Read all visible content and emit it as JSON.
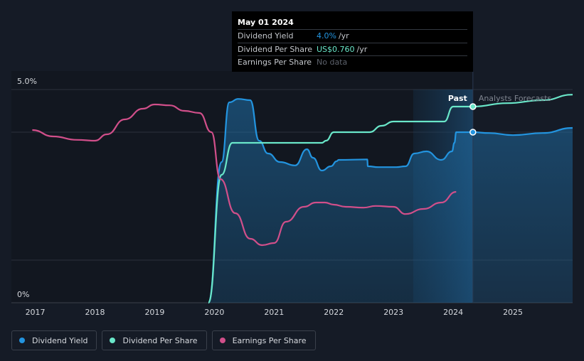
{
  "tooltip": {
    "date": "May 01 2024",
    "rows": [
      {
        "label": "Dividend Yield",
        "value": "4.0%",
        "unit": "/yr"
      },
      {
        "label": "Dividend Per Share",
        "value": "US$0.760",
        "unit": "/yr"
      },
      {
        "label": "Earnings Per Share",
        "value": "No data",
        "unit": ""
      }
    ]
  },
  "legend": [
    {
      "label": "Dividend Yield",
      "color": "#2394df"
    },
    {
      "label": "Dividend Per Share",
      "color": "#6ae7c9"
    },
    {
      "label": "Earnings Per Share",
      "color": "#d14f8a"
    }
  ],
  "chart_data": {
    "type": "line",
    "y_tick_labels": [
      "5.0%",
      "0%"
    ],
    "ylim": [
      0,
      5
    ],
    "xlim": [
      2016.6,
      2026.0
    ],
    "x_tick_labels": [
      "2017",
      "2018",
      "2019",
      "2020",
      "2021",
      "2022",
      "2023",
      "2024",
      "2025"
    ],
    "x_ticks": [
      2017,
      2018,
      2019,
      2020,
      2021,
      2022,
      2023,
      2024,
      2025
    ],
    "grid": true,
    "past_label": "Past",
    "forecast_label": "Analysts Forecasts",
    "past_end": 2024.33,
    "highlight_start": 2023.33,
    "highlight_x": 2024.33,
    "series": [
      {
        "name": "Dividend Yield",
        "color": "#2394df",
        "area": true,
        "x": [
          2019.9,
          2020.12,
          2020.25,
          2020.4,
          2020.6,
          2020.75,
          2020.9,
          2021.1,
          2021.35,
          2021.55,
          2021.65,
          2021.8,
          2021.95,
          2022.05,
          2022.08,
          2022.56,
          2022.57,
          2022.75,
          2023.05,
          2023.2,
          2023.35,
          2023.55,
          2023.8,
          2023.98,
          2024.02,
          2024.05,
          2024.33,
          2024.6,
          2025.0,
          2025.5,
          2026.0
        ],
        "y": [
          0.0,
          3.3,
          4.7,
          4.78,
          4.75,
          3.8,
          3.5,
          3.3,
          3.22,
          3.6,
          3.4,
          3.1,
          3.2,
          3.32,
          3.35,
          3.36,
          3.2,
          3.18,
          3.18,
          3.2,
          3.5,
          3.55,
          3.35,
          3.55,
          3.75,
          4.0,
          4.0,
          3.98,
          3.93,
          3.98,
          4.1
        ]
      },
      {
        "name": "Dividend Per Share",
        "color": "#6ae7c9",
        "area": false,
        "x": [
          2019.9,
          2020.12,
          2020.3,
          2020.5,
          2021.0,
          2021.5,
          2021.8,
          2021.87,
          2022.0,
          2022.3,
          2022.6,
          2022.8,
          2023.0,
          2023.3,
          2023.5,
          2023.85,
          2024.0,
          2024.33,
          2024.9,
          2025.5,
          2026.0
        ],
        "y": [
          0.0,
          3.0,
          3.75,
          3.75,
          3.75,
          3.75,
          3.75,
          3.8,
          4.0,
          4.0,
          4.0,
          4.15,
          4.25,
          4.25,
          4.25,
          4.25,
          4.6,
          4.6,
          4.68,
          4.75,
          4.88
        ]
      },
      {
        "name": "Earnings Per Share",
        "color": "#d14f8a",
        "area": false,
        "x": [
          2016.95,
          2017.3,
          2017.7,
          2018.0,
          2018.2,
          2018.5,
          2018.8,
          2019.0,
          2019.25,
          2019.5,
          2019.75,
          2019.95,
          2020.1,
          2020.35,
          2020.6,
          2020.8,
          2021.0,
          2021.2,
          2021.5,
          2021.7,
          2021.85,
          2022.0,
          2022.2,
          2022.5,
          2022.7,
          2023.0,
          2023.2,
          2023.5,
          2023.8,
          2024.05
        ],
        "y": [
          4.05,
          3.9,
          3.82,
          3.8,
          3.95,
          4.3,
          4.55,
          4.65,
          4.63,
          4.5,
          4.45,
          4.0,
          2.9,
          2.1,
          1.5,
          1.35,
          1.4,
          1.9,
          2.25,
          2.35,
          2.35,
          2.3,
          2.25,
          2.23,
          2.27,
          2.25,
          2.08,
          2.2,
          2.35,
          2.6
        ]
      }
    ],
    "markers": [
      {
        "series": "Dividend Per Share",
        "x": 2024.33,
        "y": 4.6
      },
      {
        "series": "Dividend Yield",
        "x": 2024.33,
        "y": 4.0
      }
    ]
  }
}
